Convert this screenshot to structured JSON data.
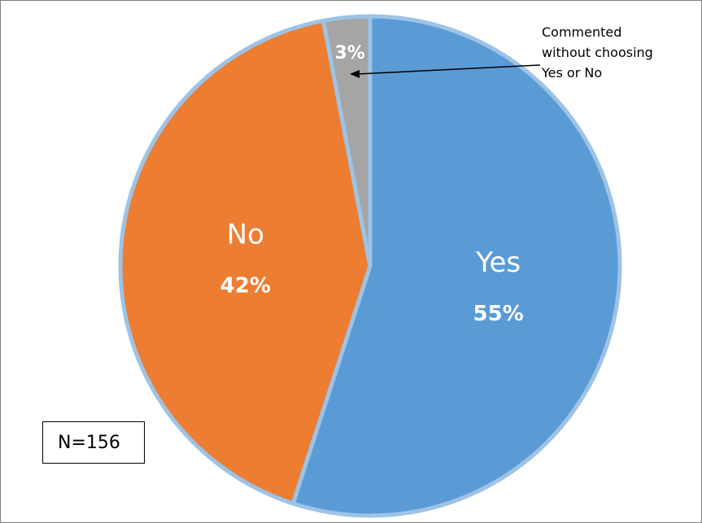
{
  "chart_data": {
    "type": "pie",
    "slices": [
      {
        "label": "Yes",
        "value": 55,
        "value_label": "55%",
        "color": "#5b9bd5"
      },
      {
        "label": "No",
        "value": 42,
        "value_label": "42%",
        "color": "#ed7d31"
      },
      {
        "label": "",
        "value": 3,
        "value_label": "3%",
        "color": "#a5a5a5"
      }
    ],
    "border_color": "#9dc3e6",
    "annotation": {
      "lines": [
        "Commented",
        "without choosing",
        "Yes or No"
      ],
      "points_to": "3%"
    },
    "sample_label": "N=156"
  }
}
